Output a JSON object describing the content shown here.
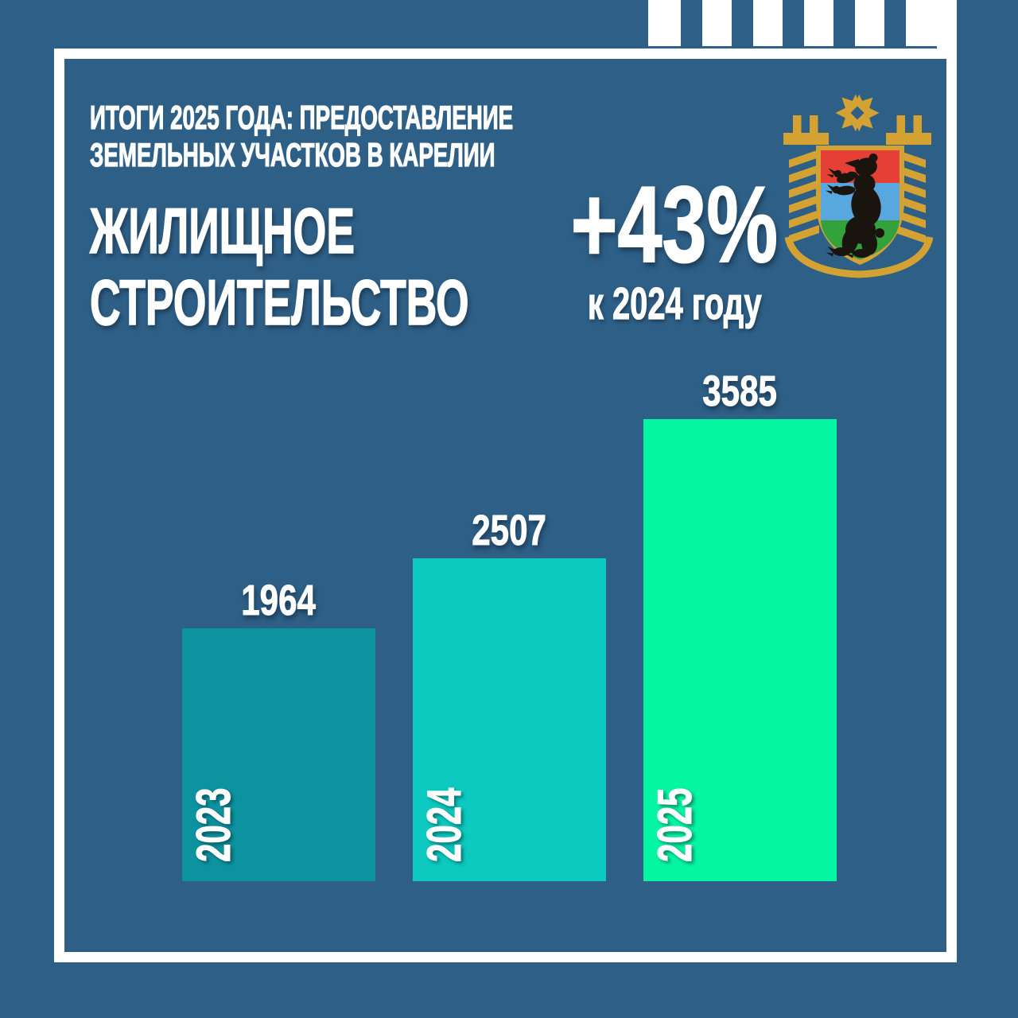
{
  "colors": {
    "background": "#2e5f86",
    "frame": "#ffffff",
    "text": "#ffffff",
    "emblem_gold": "#d4a232",
    "emblem_red": "#e63f36",
    "emblem_blue": "#59a7df",
    "emblem_green": "#33a23c",
    "emblem_bear": "#1a140e"
  },
  "header": {
    "kicker_line1": "ИТОГИ 2025 ГОДА: ПРЕДОСТАВЛЕНИЕ",
    "kicker_line2": "ЗЕМЕЛЬНЫХ УЧАСТКОВ В КАРЕЛИИ",
    "title_line1": "ЖИЛИЩНОЕ",
    "title_line2": "СТРОИТЕЛЬСТВО"
  },
  "highlight": {
    "value": "+43%",
    "caption": "к 2024 году"
  },
  "chart_data": {
    "type": "bar",
    "categories": [
      "2023",
      "2024",
      "2025"
    ],
    "values": [
      1964,
      2507,
      3585
    ],
    "bar_colors": [
      "#0d93a0",
      "#0ccabf",
      "#05f6a2"
    ],
    "ylim": [
      0,
      3850
    ],
    "title": "",
    "xlabel": "",
    "ylabel": "",
    "legend_position": "none",
    "grid": false,
    "value_labels_position": "above bars",
    "category_labels_position": "rotated 90deg inside bar bottom-left"
  }
}
